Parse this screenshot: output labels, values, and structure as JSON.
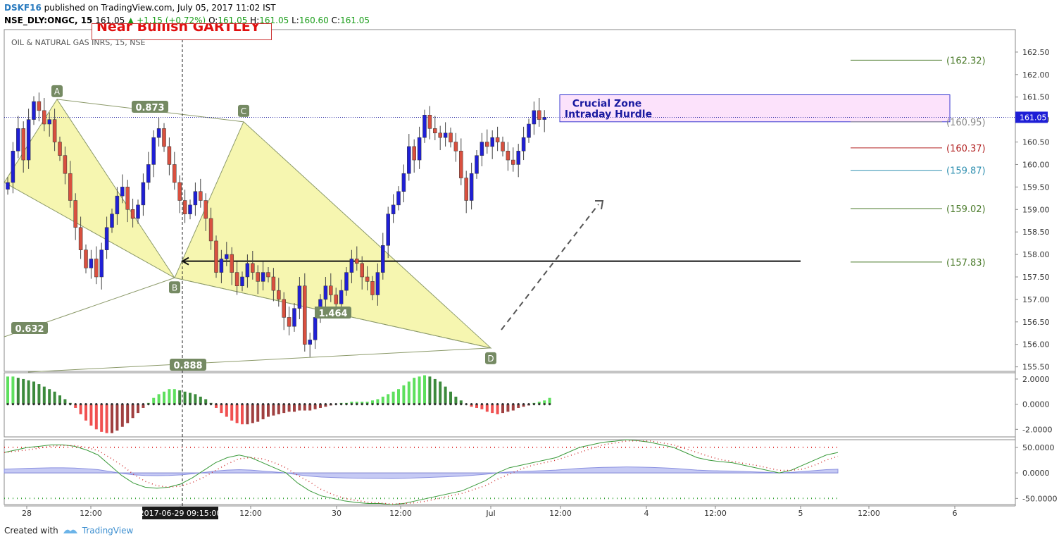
{
  "header": {
    "publisher": "DSKF16",
    "published_text": "published on TradingView.com, July 05, 2017 11:02 IST",
    "symbol_line": "NSE_DLY:ONGC, 15",
    "last": "161.05",
    "change": "▲ +1.15 (+0.72%)",
    "open_label": "O:",
    "open": "161.05",
    "high_label": "H:",
    "high": "161.05",
    "low_label": "L:",
    "low": "160.60",
    "close_label": "C:",
    "close": "161.05"
  },
  "symbol_desc": "OIL & NATURAL GAS INRS, 15, NSE",
  "banner_text": "Near Bullish GARTLEY",
  "footer": {
    "created_with": "Created with",
    "brand": "TradingView"
  },
  "colors": {
    "up": "#1f1fd6",
    "down": "#d9503f",
    "pattern_fill": "#f6f6b0",
    "pattern_line": "#8c9a6a",
    "zone_fill": "#fce2fb",
    "zone_border": "#3a3ad0",
    "price_line": "#2020a0"
  },
  "chart_data": {
    "type": "candlestick",
    "x_ticks": [
      "28",
      "12:00",
      "2017-06-29 09:15:00",
      "12:00",
      "30",
      "12:00",
      "Jul",
      "12:00",
      "4",
      "12:00",
      "5",
      "12:00",
      "6"
    ],
    "y_ticks": [
      "162.50",
      "162.00",
      "161.50",
      "161.00",
      "160.50",
      "160.00",
      "159.50",
      "159.00",
      "158.50",
      "158.00",
      "157.50",
      "157.00",
      "156.50",
      "156.00",
      "155.50"
    ],
    "y_range": [
      155.4,
      163.0
    ],
    "last_price": 161.05,
    "close_path": [
      159.6,
      160.3,
      160.8,
      160.1,
      161.0,
      161.4,
      161.2,
      160.9,
      161.0,
      160.5,
      160.2,
      159.8,
      159.2,
      158.6,
      158.1,
      157.7,
      157.9,
      157.5,
      158.1,
      158.6,
      158.9,
      159.3,
      159.5,
      159.0,
      158.8,
      159.1,
      159.6,
      160.0,
      160.6,
      160.8,
      160.4,
      160.0,
      159.6,
      159.2,
      158.9,
      159.1,
      159.4,
      159.2,
      158.8,
      158.3,
      157.6,
      157.9,
      158.0,
      157.6,
      157.3,
      157.5,
      157.8,
      157.6,
      157.4,
      157.6,
      157.5,
      157.2,
      157.0,
      156.6,
      156.4,
      156.8,
      157.3,
      156.0,
      156.1,
      156.6,
      157.0,
      157.3,
      157.1,
      156.9,
      157.2,
      157.6,
      157.9,
      157.8,
      157.5,
      157.4,
      157.1,
      157.6,
      158.2,
      158.9,
      159.1,
      159.4,
      159.8,
      160.4,
      160.1,
      160.6,
      161.1,
      160.8,
      160.7,
      160.6,
      160.7,
      160.5,
      160.3,
      159.7,
      159.2,
      159.8,
      160.2,
      160.5,
      160.4,
      160.6,
      160.5,
      160.3,
      160.1,
      160.0,
      160.3,
      160.6,
      160.9,
      161.2,
      161.0,
      161.05
    ],
    "harmonic_pattern": {
      "name": "Gartley",
      "points": [
        {
          "label": "A",
          "price": 161.45
        },
        {
          "label": "B",
          "price": 157.48
        },
        {
          "label": "C",
          "price": 160.95
        },
        {
          "label": "D",
          "price": 155.92
        }
      ],
      "ratios": [
        "0.632",
        "0.873",
        "1.464",
        "0.888"
      ]
    },
    "zone": {
      "text_line1": "Crucial Zone",
      "text_line2": "Intraday Hurdle",
      "price_top": 161.55,
      "price_bottom": 160.95
    },
    "support_line": 157.85,
    "levels": [
      {
        "label": "(162.32)",
        "price": 162.32,
        "color": "#4a7a2a"
      },
      {
        "label": "(160.95)",
        "price": 160.95,
        "color": "#888888"
      },
      {
        "label": "(160.37)",
        "price": 160.37,
        "color": "#b22222"
      },
      {
        "label": "(159.87)",
        "price": 159.87,
        "color": "#2e8fb0"
      },
      {
        "label": "(159.02)",
        "price": 159.02,
        "color": "#4a7a2a"
      },
      {
        "label": "(157.83)",
        "price": 157.83,
        "color": "#4a7a2a"
      }
    ],
    "macd": {
      "y_ticks": [
        "2.0000",
        "0.0000",
        "-2.0000"
      ],
      "y_range": [
        -2.6,
        2.5
      ],
      "values": [
        2.2,
        2.2,
        2.1,
        2.0,
        1.9,
        1.8,
        1.6,
        1.4,
        1.2,
        1.0,
        0.7,
        0.4,
        0.1,
        -0.3,
        -0.8,
        -1.3,
        -1.7,
        -2.0,
        -2.2,
        -2.3,
        -2.3,
        -2.1,
        -1.8,
        -1.5,
        -1.1,
        -0.7,
        -0.3,
        0.1,
        0.5,
        0.8,
        1.0,
        1.2,
        1.2,
        1.1,
        1.0,
        0.9,
        0.8,
        0.6,
        0.4,
        0.1,
        -0.3,
        -0.7,
        -1.0,
        -1.3,
        -1.5,
        -1.6,
        -1.6,
        -1.5,
        -1.4,
        -1.2,
        -1.0,
        -0.9,
        -0.8,
        -0.7,
        -0.6,
        -0.6,
        -0.5,
        -0.5,
        -0.5,
        -0.4,
        -0.3,
        -0.2,
        -0.1,
        0.0,
        0.1,
        0.1,
        0.2,
        0.2,
        0.2,
        0.2,
        0.3,
        0.4,
        0.6,
        0.8,
        1.0,
        1.2,
        1.5,
        1.8,
        2.1,
        2.2,
        2.3,
        2.2,
        2.0,
        1.8,
        1.4,
        1.0,
        0.6,
        0.3,
        0.0,
        -0.2,
        -0.3,
        -0.4,
        -0.6,
        -0.7,
        -0.8,
        -0.7,
        -0.6,
        -0.5,
        -0.3,
        -0.2,
        -0.1,
        0.1,
        0.2,
        0.3,
        0.5
      ]
    },
    "oscillator": {
      "y_ticks": [
        "50.0000",
        "0.0000",
        "-50.0000"
      ],
      "y_range": [
        -62,
        65
      ],
      "upper_band": 50,
      "lower_band": -50,
      "line": [
        40,
        45,
        50,
        52,
        55,
        55,
        52,
        45,
        35,
        15,
        -5,
        -20,
        -28,
        -30,
        -28,
        -22,
        -10,
        5,
        20,
        30,
        35,
        30,
        20,
        10,
        0,
        -20,
        -35,
        -45,
        -50,
        -55,
        -58,
        -60,
        -60,
        -62,
        -60,
        -55,
        -50,
        -45,
        -40,
        -35,
        -25,
        -15,
        0,
        10,
        15,
        20,
        25,
        30,
        40,
        50,
        55,
        60,
        62,
        65,
        63,
        60,
        55,
        50,
        40,
        30,
        25,
        22,
        20,
        15,
        10,
        5,
        0,
        5,
        15,
        25,
        35,
        40
      ]
    }
  }
}
